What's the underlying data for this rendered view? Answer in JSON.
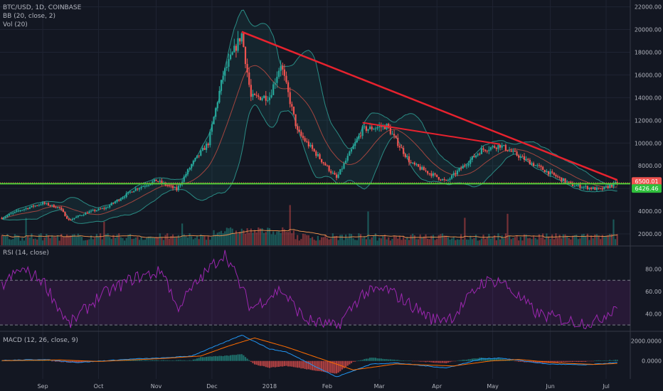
{
  "legend": {
    "symbol": "BTC/USD, 1D, COINBASE",
    "bb": "BB (20, close, 2)",
    "vol": "Vol (20)",
    "rsi": "RSI (14, close)",
    "macd": "MACD (12, 26, close, 9)"
  },
  "price_labels": {
    "last": "6500.01",
    "support": "6426.46"
  },
  "colors": {
    "up": "#26a69a",
    "down": "#ef5350",
    "trend": "#e8222e",
    "support": "#4cd137",
    "rsi": "#9c27b0",
    "macd": "#2196f3",
    "signal": "#ff6d00"
  },
  "chart_data": [
    {
      "type": "candlestick",
      "title": "BTC/USD, 1D, COINBASE",
      "x_ticks": [
        "Sep",
        "Oct",
        "Nov",
        "Dec",
        "2018",
        "Feb",
        "Mar",
        "Apr",
        "May",
        "Jun",
        "Jul"
      ],
      "y_ticks": [
        2000,
        4000,
        6000,
        8000,
        10000,
        12000,
        14000,
        16000,
        18000,
        20000,
        22000
      ],
      "ylim": [
        1000,
        22600
      ],
      "series_keyframes": {
        "price_close": [
          [
            "2017-08-10",
            3400
          ],
          [
            "2017-08-20",
            4100
          ],
          [
            "2017-09-01",
            4700
          ],
          [
            "2017-09-10",
            4300
          ],
          [
            "2017-09-15",
            3200
          ],
          [
            "2017-09-25",
            3900
          ],
          [
            "2017-10-05",
            4300
          ],
          [
            "2017-10-20",
            5900
          ],
          [
            "2017-11-01",
            6700
          ],
          [
            "2017-11-12",
            5900
          ],
          [
            "2017-11-20",
            8100
          ],
          [
            "2017-11-29",
            10000
          ],
          [
            "2017-12-07",
            16000
          ],
          [
            "2017-12-17",
            19600
          ],
          [
            "2017-12-22",
            14000
          ],
          [
            "2018-01-01",
            14100
          ],
          [
            "2018-01-07",
            17000
          ],
          [
            "2018-01-16",
            11000
          ],
          [
            "2018-02-06",
            6900
          ],
          [
            "2018-02-20",
            11200
          ],
          [
            "2018-03-05",
            11500
          ],
          [
            "2018-03-18",
            8200
          ],
          [
            "2018-04-06",
            6600
          ],
          [
            "2018-04-25",
            9400
          ],
          [
            "2018-05-05",
            9800
          ],
          [
            "2018-05-20",
            8400
          ],
          [
            "2018-05-30",
            7500
          ],
          [
            "2018-06-13",
            6300
          ],
          [
            "2018-06-28",
            5900
          ],
          [
            "2018-07-07",
            6500
          ]
        ]
      },
      "annotations": [
        {
          "type": "trendline",
          "from": [
            "2017-12-17",
            19800
          ],
          "to": [
            "2018-07-07",
            6750
          ]
        },
        {
          "type": "trendline",
          "from": [
            "2018-02-20",
            11800
          ],
          "to": [
            "2018-05-05",
            9900
          ]
        },
        {
          "type": "support",
          "level": 6426.46
        }
      ],
      "last_price": 6500.01
    },
    {
      "type": "line",
      "title": "RSI (14, close)",
      "y_ticks": [
        40,
        60,
        80
      ],
      "ylim": [
        25,
        100
      ],
      "bands": [
        30,
        70
      ],
      "keyframes": [
        [
          "2017-08-10",
          65
        ],
        [
          "2017-08-20",
          80
        ],
        [
          "2017-09-01",
          70
        ],
        [
          "2017-09-15",
          30
        ],
        [
          "2017-10-01",
          55
        ],
        [
          "2017-10-20",
          72
        ],
        [
          "2017-11-05",
          78
        ],
        [
          "2017-11-12",
          45
        ],
        [
          "2017-11-25",
          72
        ],
        [
          "2017-12-08",
          95
        ],
        [
          "2017-12-22",
          45
        ],
        [
          "2018-01-07",
          62
        ],
        [
          "2018-01-20",
          35
        ],
        [
          "2018-02-06",
          28
        ],
        [
          "2018-02-20",
          58
        ],
        [
          "2018-03-05",
          62
        ],
        [
          "2018-03-30",
          35
        ],
        [
          "2018-04-10",
          38
        ],
        [
          "2018-04-25",
          68
        ],
        [
          "2018-05-05",
          70
        ],
        [
          "2018-05-25",
          40
        ],
        [
          "2018-06-13",
          33
        ],
        [
          "2018-06-25",
          32
        ],
        [
          "2018-07-07",
          48
        ]
      ]
    },
    {
      "type": "line",
      "title": "MACD (12, 26, close, 9)",
      "y_ticks": [
        0,
        2000
      ],
      "ylim": [
        -1800,
        2900
      ],
      "keyframes": {
        "macd": [
          [
            "2017-08-10",
            50
          ],
          [
            "2017-09-01",
            150
          ],
          [
            "2017-09-20",
            -150
          ],
          [
            "2017-10-20",
            200
          ],
          [
            "2017-11-05",
            300
          ],
          [
            "2017-11-20",
            500
          ],
          [
            "2017-12-07",
            1800
          ],
          [
            "2017-12-17",
            2600
          ],
          [
            "2018-01-01",
            1200
          ],
          [
            "2018-01-10",
            900
          ],
          [
            "2018-02-06",
            -1600
          ],
          [
            "2018-02-25",
            -300
          ],
          [
            "2018-03-10",
            -200
          ],
          [
            "2018-04-06",
            -700
          ],
          [
            "2018-04-25",
            200
          ],
          [
            "2018-05-05",
            300
          ],
          [
            "2018-05-30",
            -300
          ],
          [
            "2018-06-20",
            -400
          ],
          [
            "2018-07-07",
            -150
          ]
        ],
        "signal": [
          [
            "2017-08-10",
            30
          ],
          [
            "2017-09-10",
            100
          ],
          [
            "2017-10-01",
            -50
          ],
          [
            "2017-11-05",
            250
          ],
          [
            "2017-11-25",
            500
          ],
          [
            "2017-12-10",
            1500
          ],
          [
            "2017-12-24",
            2300
          ],
          [
            "2018-01-10",
            1400
          ],
          [
            "2018-02-01",
            0
          ],
          [
            "2018-02-15",
            -900
          ],
          [
            "2018-03-10",
            -300
          ],
          [
            "2018-04-10",
            -500
          ],
          [
            "2018-04-30",
            0
          ],
          [
            "2018-05-15",
            150
          ],
          [
            "2018-06-05",
            -200
          ],
          [
            "2018-06-25",
            -350
          ],
          [
            "2018-07-07",
            -250
          ]
        ]
      }
    }
  ]
}
